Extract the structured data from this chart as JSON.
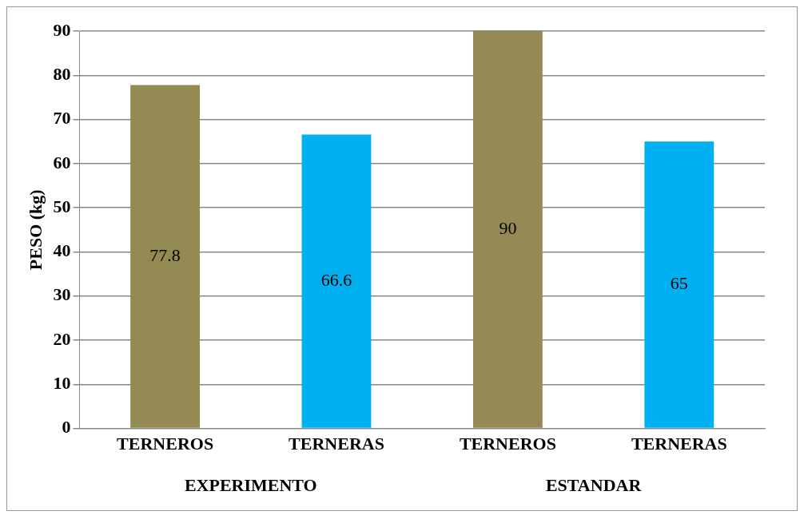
{
  "chart_data": {
    "type": "bar",
    "ylabel": "PESO (kg)",
    "categories": [
      "TERNEROS",
      "TERNERAS",
      "TERNEROS",
      "TERNERAS"
    ],
    "values": [
      77.8,
      66.6,
      90,
      65
    ],
    "colors": [
      "#948a54",
      "#00b0f0",
      "#948a54",
      "#00b0f0"
    ],
    "ylim": [
      0,
      90
    ],
    "yticks": [
      0,
      10,
      20,
      30,
      40,
      50,
      60,
      70,
      80,
      90
    ],
    "grid": "y",
    "legend": false,
    "data_labels": true,
    "annotations": [
      "EXPERIMENTO",
      "ESTANDAR"
    ]
  }
}
